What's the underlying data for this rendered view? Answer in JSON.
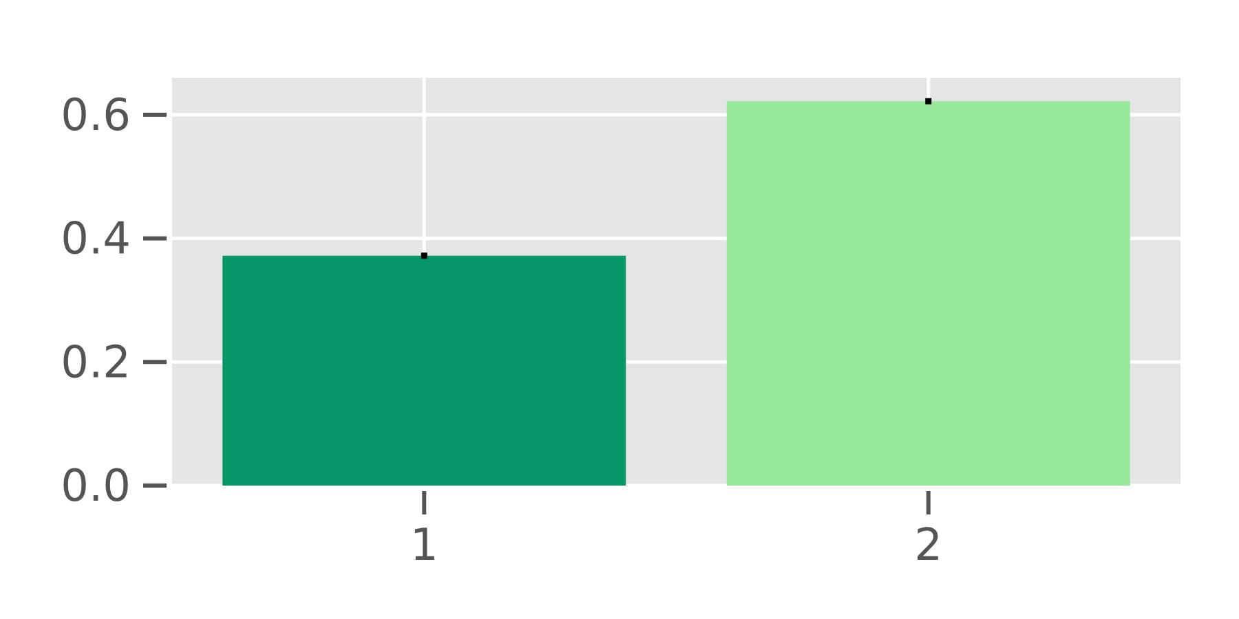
{
  "chart_data": {
    "type": "bar",
    "title": "",
    "xlabel": "",
    "ylabel": "",
    "categories": [
      "1",
      "2"
    ],
    "values": [
      0.372,
      0.622
    ],
    "error_low": [
      0.367,
      0.617
    ],
    "error_high": [
      0.377,
      0.627
    ],
    "bar_colors": [
      "#079669",
      "#98e89b"
    ],
    "ylim": [
      0,
      0.66
    ],
    "yticks": [
      0.0,
      0.2,
      0.4,
      0.6
    ],
    "ytick_labels": [
      "0.0",
      "0.2",
      "0.4",
      "0.6"
    ],
    "grid": true,
    "legend": "none",
    "panel_background": "#e5e5e5",
    "grid_color": "#ffffff",
    "tick_color": "#555555",
    "errorbar_color": "#000000"
  }
}
